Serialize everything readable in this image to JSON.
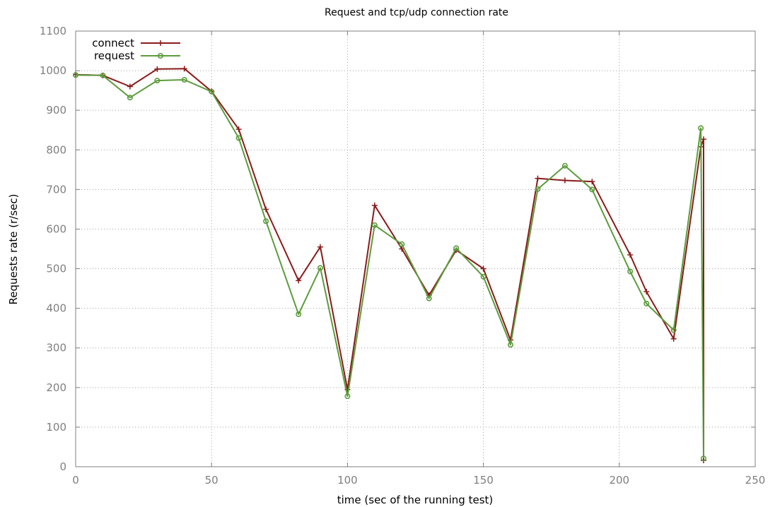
{
  "chart_data": {
    "type": "line",
    "title": "Request and tcp/udp connection rate",
    "xlabel": "time (sec of the running test)",
    "ylabel": "Requests rate (r/sec)",
    "xlim": [
      0,
      250
    ],
    "ylim": [
      0,
      1100
    ],
    "xticks": [
      0,
      50,
      100,
      150,
      200,
      250
    ],
    "yticks": [
      0,
      100,
      200,
      300,
      400,
      500,
      600,
      700,
      800,
      900,
      1000,
      1100
    ],
    "grid": true,
    "legend_position": "top-left",
    "series": [
      {
        "name": "connect",
        "color": "#8b1a1a",
        "marker": "plus",
        "x": [
          0,
          10,
          20,
          30,
          40,
          50,
          60,
          70,
          82,
          90,
          100,
          110,
          120,
          130,
          140,
          150,
          160,
          170,
          180,
          190,
          204,
          210,
          220,
          230,
          231,
          231
        ],
        "y": [
          990,
          988,
          960,
          1004,
          1005,
          948,
          852,
          650,
          470,
          555,
          195,
          660,
          550,
          433,
          547,
          500,
          320,
          728,
          723,
          720,
          535,
          442,
          323,
          808,
          827,
          16
        ]
      },
      {
        "name": "request",
        "color": "#5c9c3c",
        "marker": "circle",
        "x": [
          0,
          10,
          20,
          30,
          40,
          50,
          60,
          70,
          82,
          90,
          100,
          110,
          120,
          130,
          140,
          150,
          160,
          170,
          180,
          190,
          204,
          210,
          220,
          230,
          231
        ],
        "y": [
          989,
          988,
          932,
          975,
          977,
          947,
          830,
          620,
          385,
          502,
          178,
          610,
          562,
          425,
          552,
          480,
          308,
          701,
          760,
          700,
          493,
          412,
          345,
          855,
          21
        ]
      }
    ]
  }
}
